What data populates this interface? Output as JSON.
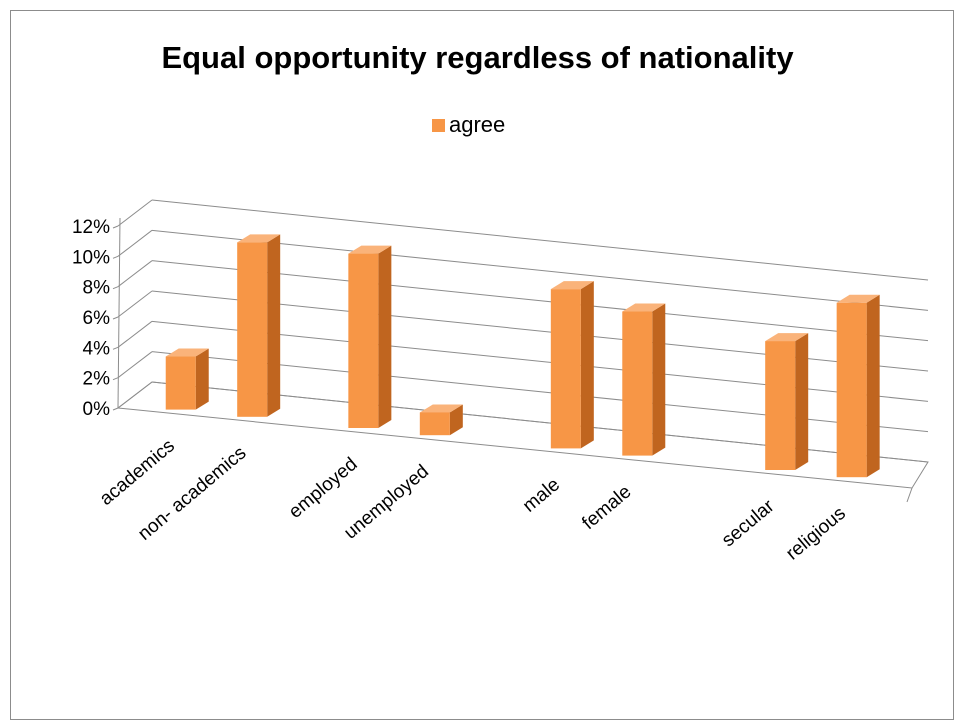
{
  "chart_data": {
    "type": "bar",
    "title": "Equal opportunity regardless of nationality",
    "xlabel": "",
    "ylabel": "",
    "categories": [
      "academics",
      "non- academics",
      "employed",
      "unemployed",
      "male",
      "female",
      "secular",
      "religious"
    ],
    "series": [
      {
        "name": "agree",
        "values": [
          3.5,
          11.5,
          11.5,
          1.5,
          10.5,
          9.5,
          8.5,
          11.5
        ]
      }
    ],
    "y_ticks": [
      "0%",
      "2%",
      "4%",
      "6%",
      "8%",
      "10%",
      "12%"
    ],
    "ylim": [
      0,
      12
    ],
    "grid": true,
    "legend": "top-center",
    "style": "3d-column"
  },
  "colors": {
    "bar_front": "#f79646",
    "bar_side": "#c0651f",
    "bar_top": "#fab37a",
    "grid": "#8c8c8c"
  }
}
